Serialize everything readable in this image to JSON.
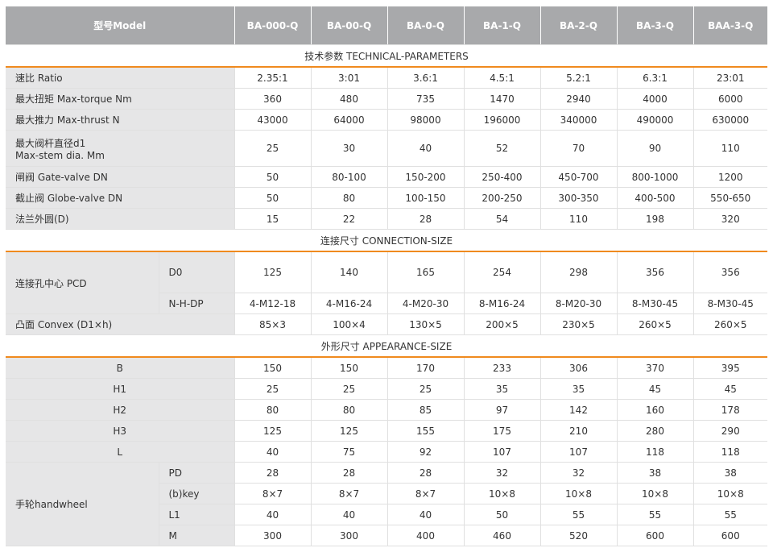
{
  "header": {
    "model": "型号Model",
    "models": [
      "BA-000-Q",
      "BA-00-Q",
      "BA-0-Q",
      "BA-1-Q",
      "BA-2-Q",
      "BA-3-Q",
      "BAA-3-Q"
    ]
  },
  "sections": {
    "technical": "技术参数 TECHNICAL-PARAMETERS",
    "connection": "连接尺寸 CONNECTION-SIZE",
    "appearance": "外形尺寸 APPEARANCE-SIZE"
  },
  "technical_rows": [
    {
      "label": "速比 Ratio",
      "values": [
        "2.35:1",
        "3:01",
        "3.6:1",
        "4.5:1",
        "5.2:1",
        "6.3:1",
        "23:01"
      ]
    },
    {
      "label": "最大扭矩 Max-torque Nm",
      "values": [
        "360",
        "480",
        "735",
        "1470",
        "2940",
        "4000",
        "6000"
      ]
    },
    {
      "label": "最大推力 Max-thrust N",
      "values": [
        "43000",
        "64000",
        "98000",
        "196000",
        "340000",
        "490000",
        "630000"
      ]
    },
    {
      "label": "最大阀杆直径d1",
      "label2": "Max-stem dia. Mm",
      "values": [
        "25",
        "30",
        "40",
        "52",
        "70",
        "90",
        "110"
      ]
    },
    {
      "label": "闸阀 Gate-valve DN",
      "values": [
        "50",
        "80-100",
        "150-200",
        "250-400",
        "450-700",
        "800-1000",
        "1200"
      ]
    },
    {
      "label": "截止阀 Globe-valve DN",
      "values": [
        "50",
        "80",
        "100-150",
        "200-250",
        "300-350",
        "400-500",
        "550-650"
      ]
    },
    {
      "label": "法兰外圆(D)",
      "values": [
        "15",
        "22",
        "28",
        "54",
        "110",
        "198",
        "320"
      ]
    }
  ],
  "connection": {
    "pcd_label": "连接孔中心    PCD",
    "d0": {
      "label": "D0",
      "values": [
        "125",
        "140",
        "165",
        "254",
        "298",
        "356",
        "356"
      ]
    },
    "nhdp": {
      "label": "N-H-DP",
      "values": [
        "4-M12-18",
        "4-M16-24",
        "4-M20-30",
        "8-M16-24",
        "8-M20-30",
        "8-M30-45",
        "8-M30-45"
      ]
    },
    "convex": {
      "label": "凸面 Convex  (D1×h)",
      "values": [
        "85×3",
        "100×4",
        "130×5",
        "200×5",
        "230×5",
        "260×5",
        "260×5"
      ]
    }
  },
  "appearance_rows": [
    {
      "label": "B",
      "values": [
        "150",
        "150",
        "170",
        "233",
        "306",
        "370",
        "395"
      ]
    },
    {
      "label": "H1",
      "values": [
        "25",
        "25",
        "25",
        "35",
        "35",
        "45",
        "45"
      ]
    },
    {
      "label": "H2",
      "values": [
        "80",
        "80",
        "85",
        "97",
        "142",
        "160",
        "178"
      ]
    },
    {
      "label": "H3",
      "values": [
        "125",
        "125",
        "155",
        "175",
        "210",
        "280",
        "290"
      ]
    },
    {
      "label": "L",
      "values": [
        "40",
        "75",
        "92",
        "107",
        "107",
        "118",
        "118"
      ]
    }
  ],
  "handwheel": {
    "label": "手轮handwheel",
    "rows": [
      {
        "label": "PD",
        "values": [
          "28",
          "28",
          "28",
          "32",
          "32",
          "38",
          "38"
        ]
      },
      {
        "label": "(b)key",
        "values": [
          "8×7",
          "8×7",
          "8×7",
          "10×8",
          "10×8",
          "10×8",
          "10×8"
        ]
      },
      {
        "label": "L1",
        "values": [
          "40",
          "40",
          "40",
          "50",
          "55",
          "55",
          "55"
        ]
      },
      {
        "label": "M",
        "values": [
          "300",
          "300",
          "400",
          "460",
          "520",
          "600",
          "600"
        ]
      }
    ]
  },
  "colors": {
    "header_bg": "#a8a9ab",
    "label_bg": "#e6e6e7",
    "accent_line": "#f08a1e"
  }
}
